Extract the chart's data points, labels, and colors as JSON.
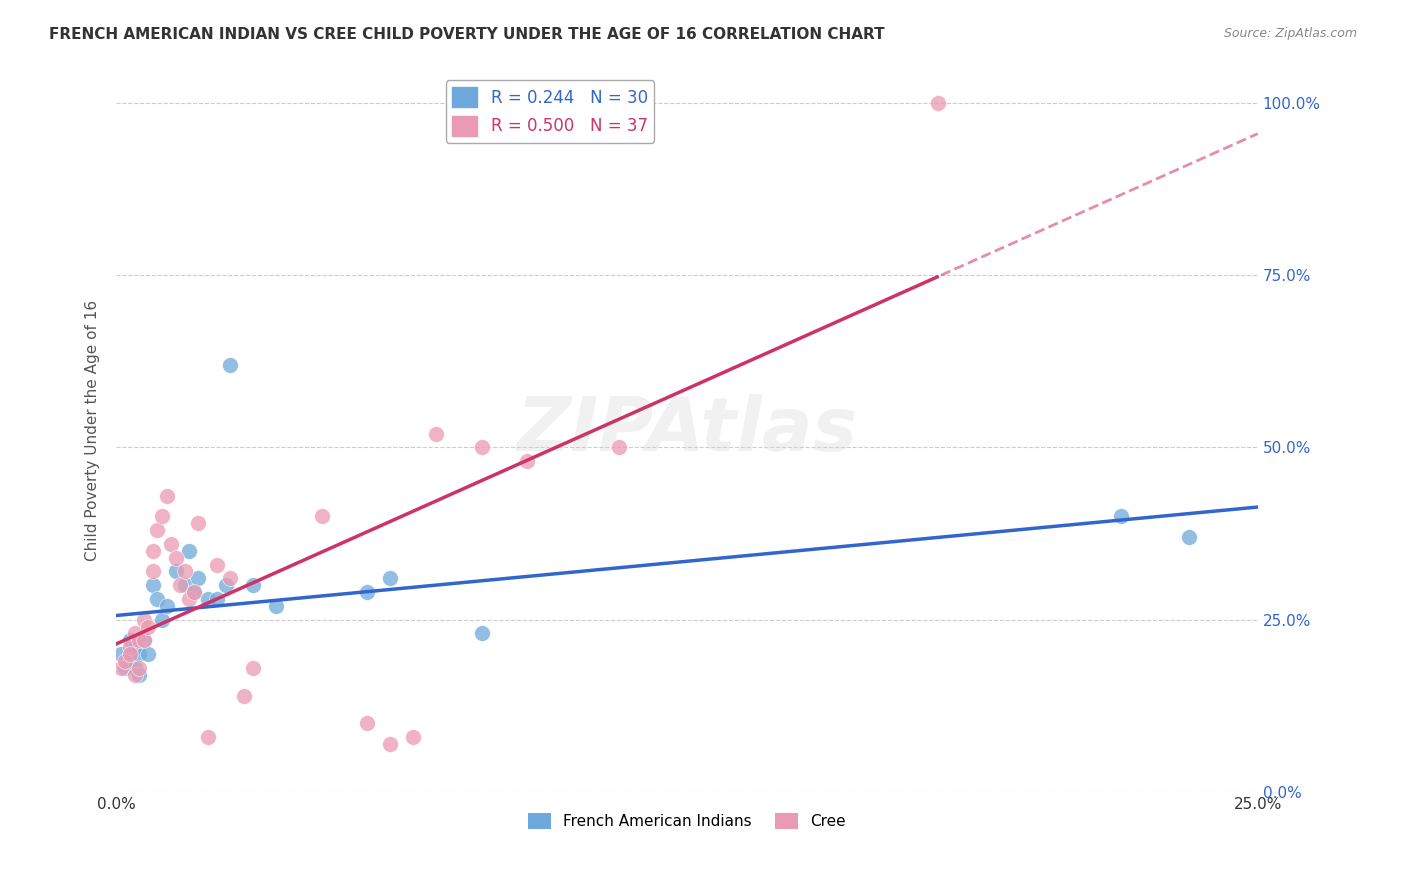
{
  "title": "FRENCH AMERICAN INDIAN VS CREE CHILD POVERTY UNDER THE AGE OF 16 CORRELATION CHART",
  "source": "Source: ZipAtlas.com",
  "ylabel": "Child Poverty Under the Age of 16",
  "xlim": [
    0.0,
    0.25
  ],
  "ylim": [
    0.0,
    1.05
  ],
  "yticks": [
    0.0,
    0.25,
    0.5,
    0.75,
    1.0
  ],
  "ytick_labels": [
    "0.0%",
    "25.0%",
    "50.0%",
    "75.0%",
    "100.0%"
  ],
  "xticks": [
    0.0,
    0.05,
    0.1,
    0.15,
    0.2,
    0.25
  ],
  "xtick_labels": [
    "0.0%",
    "",
    "",
    "",
    "",
    "25.0%"
  ],
  "blue_R": "0.244",
  "blue_N": "30",
  "pink_R": "0.500",
  "pink_N": "37",
  "blue_color": "#6fa8dc",
  "pink_color": "#ea9ab2",
  "blue_line_color": "#3366cc",
  "pink_line_color": "#cc3366",
  "blue_scatter_x": [
    0.001,
    0.002,
    0.003,
    0.003,
    0.004,
    0.004,
    0.005,
    0.005,
    0.006,
    0.007,
    0.008,
    0.009,
    0.01,
    0.011,
    0.013,
    0.015,
    0.016,
    0.017,
    0.018,
    0.02,
    0.022,
    0.024,
    0.025,
    0.03,
    0.035,
    0.055,
    0.06,
    0.08,
    0.22,
    0.235
  ],
  "blue_scatter_y": [
    0.2,
    0.18,
    0.22,
    0.19,
    0.21,
    0.18,
    0.2,
    0.17,
    0.22,
    0.2,
    0.3,
    0.28,
    0.25,
    0.27,
    0.32,
    0.3,
    0.35,
    0.29,
    0.31,
    0.28,
    0.28,
    0.3,
    0.62,
    0.3,
    0.27,
    0.29,
    0.31,
    0.23,
    0.4,
    0.37
  ],
  "pink_scatter_x": [
    0.001,
    0.002,
    0.003,
    0.003,
    0.004,
    0.004,
    0.005,
    0.005,
    0.006,
    0.006,
    0.007,
    0.008,
    0.008,
    0.009,
    0.01,
    0.011,
    0.012,
    0.013,
    0.014,
    0.015,
    0.016,
    0.017,
    0.018,
    0.02,
    0.022,
    0.025,
    0.028,
    0.03,
    0.045,
    0.055,
    0.06,
    0.065,
    0.07,
    0.08,
    0.09,
    0.11,
    0.18
  ],
  "pink_scatter_y": [
    0.18,
    0.19,
    0.21,
    0.2,
    0.23,
    0.17,
    0.22,
    0.18,
    0.25,
    0.22,
    0.24,
    0.32,
    0.35,
    0.38,
    0.4,
    0.43,
    0.36,
    0.34,
    0.3,
    0.32,
    0.28,
    0.29,
    0.39,
    0.08,
    0.33,
    0.31,
    0.14,
    0.18,
    0.4,
    0.1,
    0.07,
    0.08,
    0.52,
    0.5,
    0.48,
    0.5,
    1.0
  ]
}
